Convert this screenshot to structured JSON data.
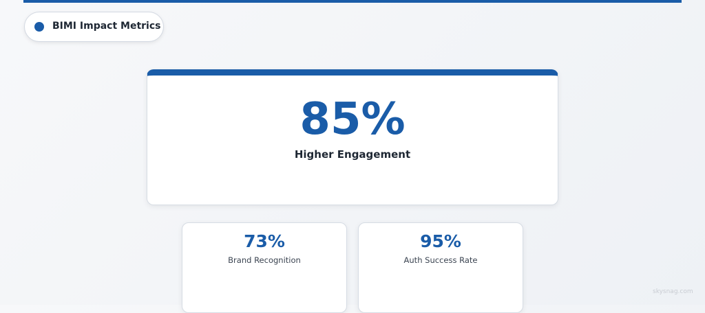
{
  "header": {
    "label": "BIMI Impact Metrics"
  },
  "main_metric": {
    "value": "85%",
    "label": "Higher Engagement"
  },
  "metrics": [
    {
      "value": "73%",
      "label": "Brand Recognition"
    },
    {
      "value": "95%",
      "label": "Auth Success Rate"
    }
  ],
  "watermark": "skysnag.com"
}
